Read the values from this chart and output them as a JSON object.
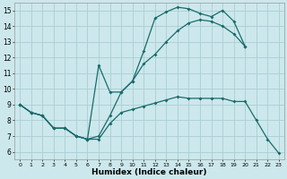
{
  "xlabel": "Humidex (Indice chaleur)",
  "ylabel": "",
  "background_color": "#cce8ec",
  "grid_color": "#aacdd4",
  "line_color": "#1a6b6b",
  "xlim": [
    -0.5,
    23.5
  ],
  "ylim": [
    5.5,
    15.5
  ],
  "xticks": [
    0,
    1,
    2,
    3,
    4,
    5,
    6,
    7,
    8,
    9,
    10,
    11,
    12,
    13,
    14,
    15,
    16,
    17,
    18,
    19,
    20,
    21,
    22,
    23
  ],
  "yticks": [
    6,
    7,
    8,
    9,
    10,
    11,
    12,
    13,
    14,
    15
  ],
  "series": [
    {
      "x": [
        0,
        1,
        2,
        3,
        4,
        5,
        6,
        7,
        8,
        9,
        10,
        11,
        12,
        13,
        14,
        15,
        16,
        17,
        18,
        19,
        20,
        21,
        22,
        23
      ],
      "y": [
        9,
        8.5,
        8.3,
        7.5,
        7.5,
        7.0,
        6.8,
        11.5,
        9.8,
        9.8,
        10.5,
        12.4,
        14.5,
        14.9,
        15.2,
        15.1,
        14.8,
        14.6,
        15.0,
        14.3,
        12.7,
        null,
        null,
        null
      ]
    },
    {
      "x": [
        0,
        1,
        2,
        3,
        4,
        5,
        6,
        7,
        8,
        9,
        10,
        11,
        12,
        13,
        14,
        15,
        16,
        17,
        18,
        19,
        20,
        21,
        22,
        23
      ],
      "y": [
        9,
        8.5,
        8.3,
        7.5,
        7.5,
        7.0,
        6.8,
        7.0,
        8.3,
        9.8,
        10.5,
        11.6,
        12.2,
        13.0,
        13.7,
        14.2,
        14.4,
        14.3,
        14.0,
        13.5,
        12.7,
        null,
        null,
        null
      ]
    },
    {
      "x": [
        0,
        1,
        2,
        3,
        4,
        5,
        6,
        7,
        8,
        9,
        10,
        11,
        12,
        13,
        14,
        15,
        16,
        17,
        18,
        19,
        20,
        21,
        22,
        23
      ],
      "y": [
        9,
        8.5,
        8.3,
        7.5,
        7.5,
        7.0,
        6.8,
        6.8,
        7.8,
        8.5,
        8.7,
        8.9,
        9.1,
        9.3,
        9.5,
        9.4,
        9.4,
        9.4,
        9.4,
        9.2,
        9.2,
        8.0,
        6.8,
        5.9
      ]
    }
  ]
}
